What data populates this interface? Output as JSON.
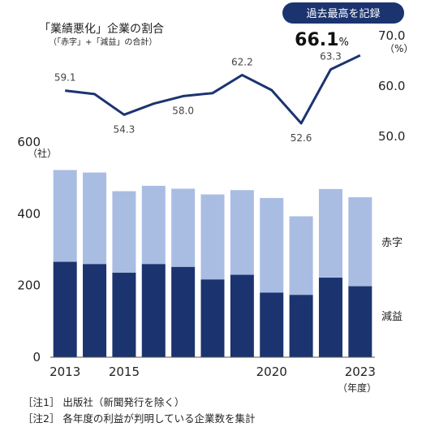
{
  "chart_data": {
    "type": "bar+line",
    "title": "「業績悪化」企業の割合",
    "subtitle": "（「赤字」+「減益」の合計）",
    "badge": "過去最高を記録",
    "categories": [
      "2013",
      "2014",
      "2015",
      "2016",
      "2017",
      "2018",
      "2019",
      "2020",
      "2021",
      "2022",
      "2023"
    ],
    "x_tick_labels": [
      "2013",
      "2015",
      "2020",
      "2023"
    ],
    "x_unit": "（年度）",
    "bars": {
      "y_unit": "（社）",
      "ylim": [
        0,
        600
      ],
      "yticks": [
        "0",
        "200",
        "400",
        "600"
      ],
      "series": [
        {
          "name": "減益",
          "color": "#1b3470",
          "values": [
            266,
            260,
            236,
            260,
            252,
            217,
            230,
            180,
            174,
            222,
            198
          ]
        },
        {
          "name": "赤字",
          "color": "#a9bde3",
          "values": [
            256,
            255,
            227,
            218,
            218,
            237,
            236,
            264,
            219,
            247,
            248
          ]
        }
      ]
    },
    "line": {
      "y_unit": "（%）",
      "ylim": [
        50,
        70
      ],
      "yticks": [
        "50.0",
        "60.0",
        "70.0"
      ],
      "color": "#1b3470",
      "values": [
        59.1,
        58.4,
        54.3,
        56.5,
        58.0,
        58.6,
        62.2,
        59.2,
        52.6,
        63.3,
        66.1
      ],
      "data_labels": [
        {
          "index": 0,
          "text": "59.1"
        },
        {
          "index": 2,
          "text": "54.3"
        },
        {
          "index": 4,
          "text": "58.0"
        },
        {
          "index": 6,
          "text": "62.2"
        },
        {
          "index": 8,
          "text": "52.6"
        },
        {
          "index": 9,
          "text": "63.3"
        },
        {
          "index": 10,
          "text": "66.1"
        }
      ],
      "highlight_suffix": "%"
    },
    "notes": [
      "［注1］ 出版社（新聞発行を除く）",
      "［注2］ 各年度の利益が判明している企業数を集計"
    ]
  }
}
